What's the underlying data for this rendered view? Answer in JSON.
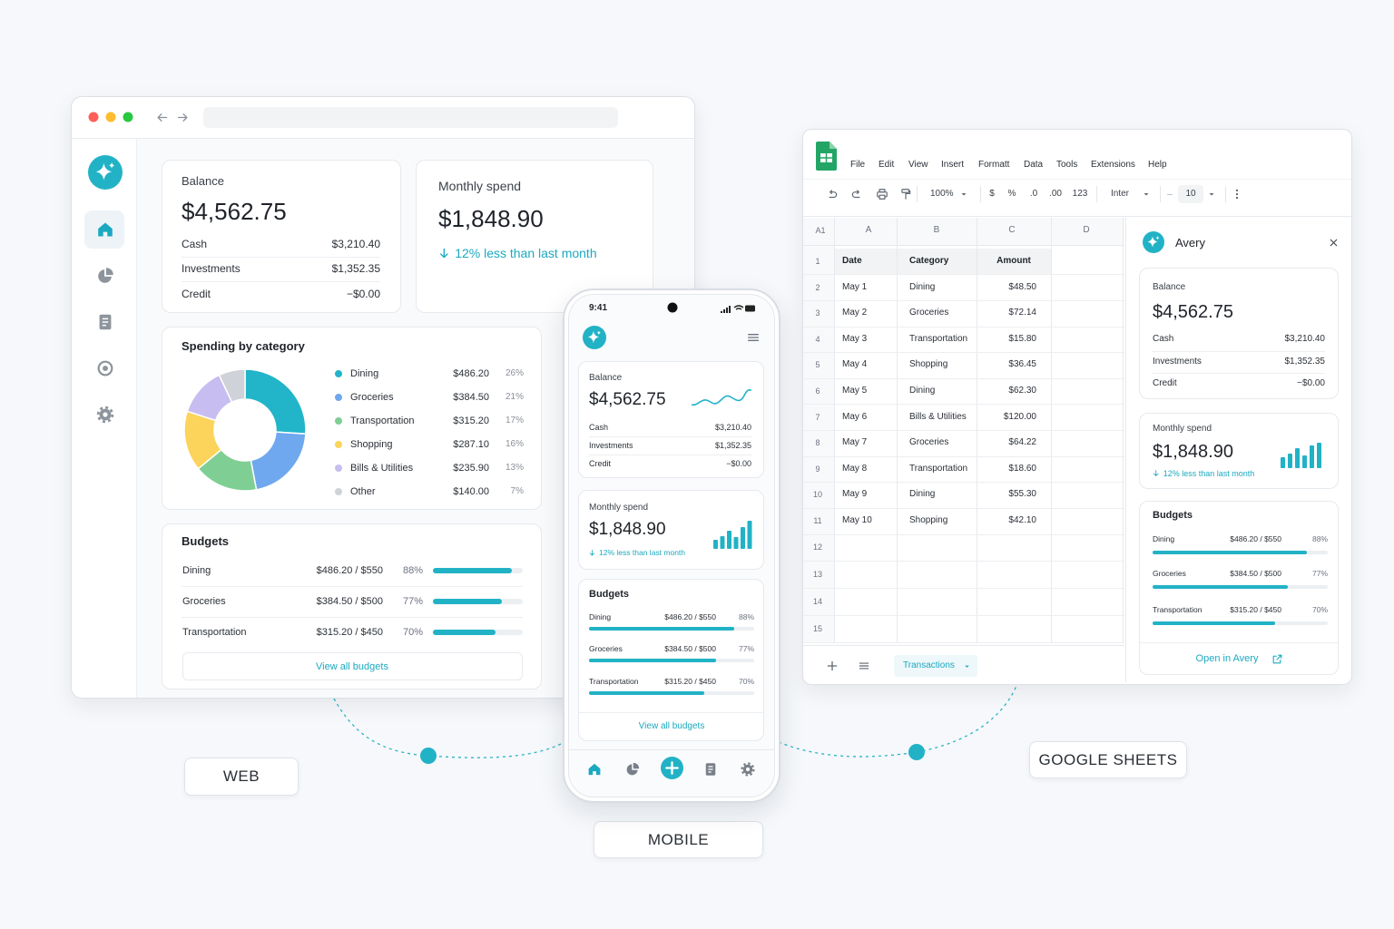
{
  "finance": {
    "balance": {
      "title": "Balance",
      "amount": "$4,562.75",
      "rows": [
        {
          "label": "Cash",
          "value": "$3,210.40"
        },
        {
          "label": "Investments",
          "value": "$1,352.35"
        },
        {
          "label": "Credit",
          "value": "−$0.00"
        }
      ]
    },
    "monthly_spend": {
      "title": "Monthly spend",
      "amount": "$1,848.90",
      "change": "12% less than last month"
    },
    "budgets": {
      "title": "Budgets",
      "items": [
        {
          "name": "Dining",
          "spent": "$486.20 / $550",
          "progress": 88,
          "progress_label": "88%"
        },
        {
          "name": "Groceries",
          "spent": "$384.50 / $500",
          "progress": 77,
          "progress_label": "77%"
        },
        {
          "name": "Transportation",
          "spent": "$315.20 / $450",
          "progress": 70,
          "progress_label": "70%"
        }
      ],
      "link": "View all budgets"
    }
  },
  "web": {
    "label": "WEB",
    "spending": {
      "title": "Spending by category",
      "items": [
        {
          "name": "Dining",
          "amount": "$486.20",
          "share": 26,
          "share_label": "26%",
          "color": "#22b5c9"
        },
        {
          "name": "Groceries",
          "amount": "$384.50",
          "share": 21,
          "share_label": "21%",
          "color": "#6fa8ee"
        },
        {
          "name": "Transportation",
          "amount": "$315.20",
          "share": 17,
          "share_label": "17%",
          "color": "#7fcf94"
        },
        {
          "name": "Shopping",
          "amount": "$287.10",
          "share": 16,
          "share_label": "16%",
          "color": "#fcd45c"
        },
        {
          "name": "Bills & Utilities",
          "amount": "$235.90",
          "share": 13,
          "share_label": "13%",
          "color": "#c8bdf0"
        },
        {
          "name": "Other",
          "amount": "$140.00",
          "share": 7,
          "share_label": "7%",
          "color": "#cfd2d8"
        }
      ]
    }
  },
  "mobile": {
    "label": "MOBILE",
    "time": "9:41"
  },
  "sheets": {
    "label": "GOOGLE SHEETS",
    "menu": [
      "File",
      "Edit",
      "View",
      "Insert",
      "Formatt",
      "Data",
      "Tools",
      "Extensions",
      "Help"
    ],
    "toolbar": [
      "100%",
      "$",
      "%",
      ".0",
      ".00",
      "123",
      "Inter",
      "10"
    ],
    "name_box": "A1",
    "columns": [
      "A",
      "B",
      "C",
      "D"
    ],
    "row_numbers": [
      1,
      2,
      3,
      4,
      5,
      6,
      7,
      8,
      9,
      10,
      11,
      12,
      13,
      14,
      15
    ],
    "header": [
      "Date",
      "Category",
      "Amount"
    ],
    "rows": [
      [
        "May 1",
        "Dining",
        "$48.50"
      ],
      [
        "May 2",
        "Groceries",
        "$72.14"
      ],
      [
        "May 3",
        "Transportation",
        "$15.80"
      ],
      [
        "May 4",
        "Shopping",
        "$36.45"
      ],
      [
        "May 5",
        "Dining",
        "$62.30"
      ],
      [
        "May 6",
        "Bills & Utilities",
        "$120.00"
      ],
      [
        "May 7",
        "Groceries",
        "$64.22"
      ],
      [
        "May 8",
        "Transportation",
        "$18.60"
      ],
      [
        "May 9",
        "Dining",
        "$55.30"
      ],
      [
        "May 10",
        "Shopping",
        "$42.10"
      ]
    ],
    "tab": "Transactions",
    "panel": {
      "title": "Avery",
      "open": "Open in Avery"
    }
  }
}
